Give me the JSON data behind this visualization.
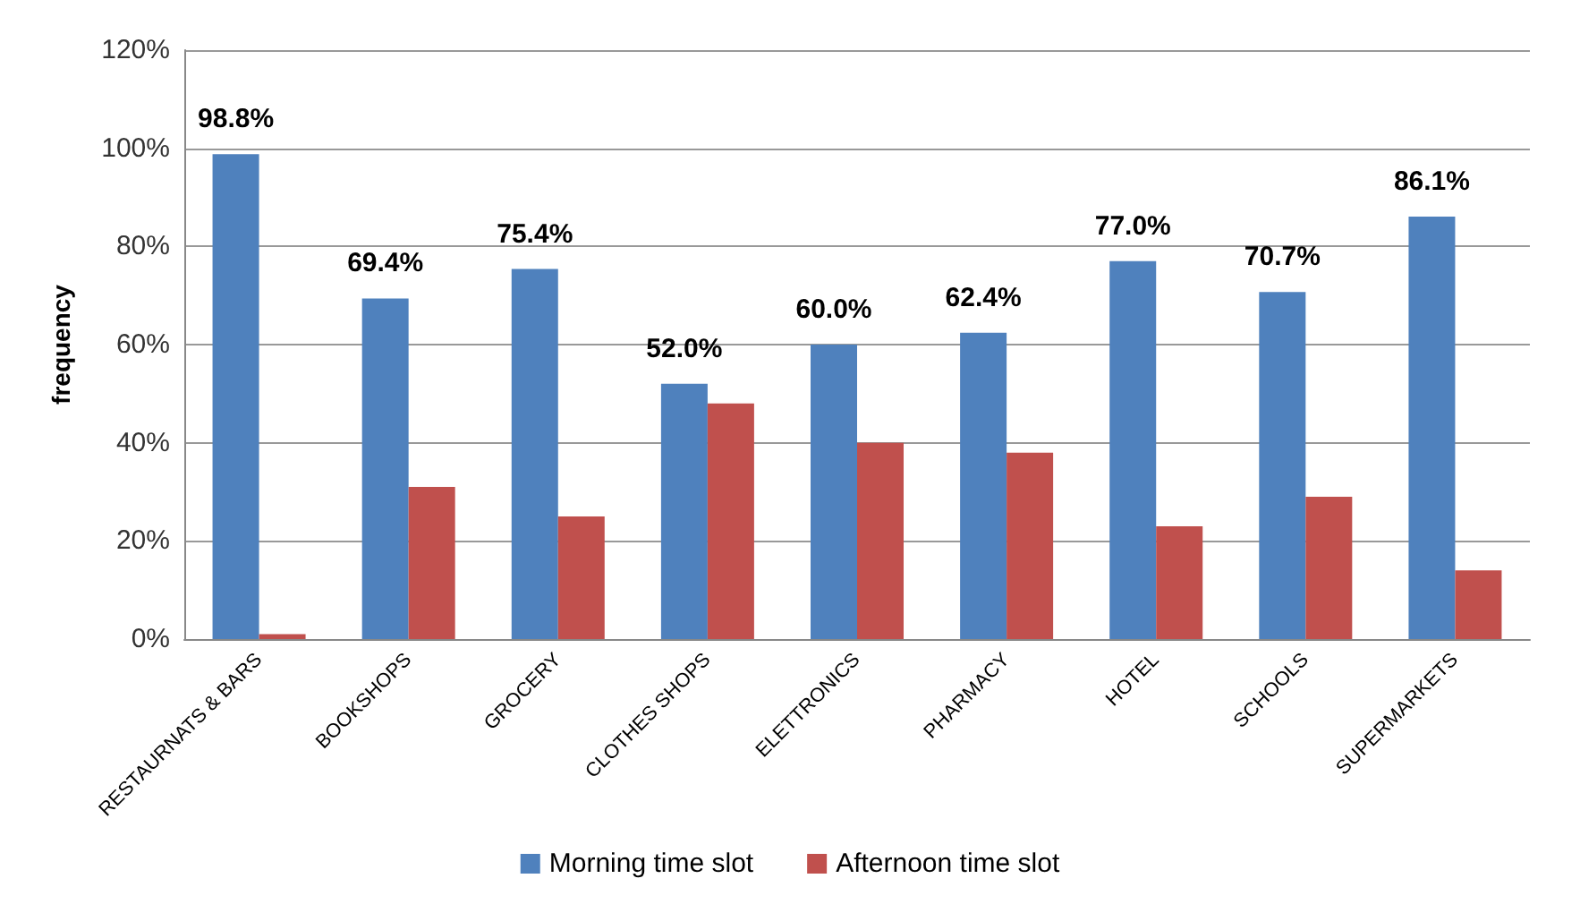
{
  "chart_data": {
    "type": "bar",
    "ylabel": "frequency",
    "categories": [
      "RESTAURNATS & BARS",
      "BOOKSHOPS",
      "GROCERY",
      "CLOTHES SHOPS",
      "ELETTRONICS",
      "PHARMACY",
      "HOTEL",
      "SCHOOLS",
      "SUPERMARKETS"
    ],
    "series": [
      {
        "name": "Morning time slot",
        "color": "#4f81bd",
        "values": [
          98.8,
          69.4,
          75.4,
          52.0,
          60.0,
          62.4,
          77.0,
          70.7,
          86.1
        ],
        "value_labels": [
          "98.8%",
          "69.4%",
          "75.4%",
          "52.0%",
          "60.0%",
          "62.4%",
          "77.0%",
          "70.7%",
          "86.1%"
        ]
      },
      {
        "name": "Afternoon time slot",
        "color": "#c0504d",
        "values": [
          1,
          31,
          25,
          48,
          40,
          38,
          23,
          29,
          14
        ]
      }
    ],
    "ylim": [
      0,
      120
    ],
    "yticks": [
      {
        "value": 0,
        "label": "0%"
      },
      {
        "value": 20,
        "label": "20%"
      },
      {
        "value": 40,
        "label": "40%"
      },
      {
        "value": 60,
        "label": "60%"
      },
      {
        "value": 80,
        "label": "80%"
      },
      {
        "value": 100,
        "label": "100%"
      },
      {
        "value": 120,
        "label": "120%"
      }
    ],
    "grid": "y",
    "legend": "bottom"
  }
}
